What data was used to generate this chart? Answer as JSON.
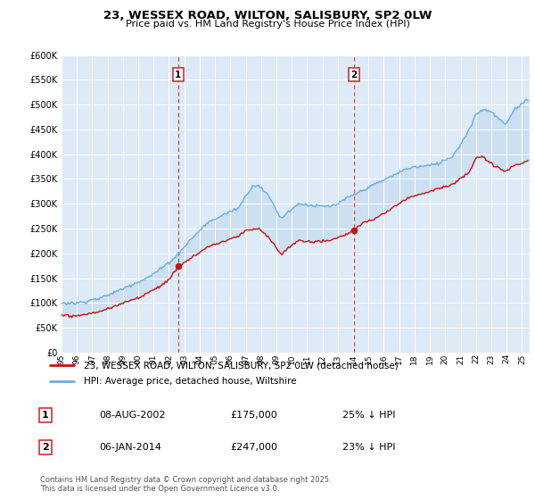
{
  "title": "23, WESSEX ROAD, WILTON, SALISBURY, SP2 0LW",
  "subtitle": "Price paid vs. HM Land Registry's House Price Index (HPI)",
  "legend_line1": "23, WESSEX ROAD, WILTON, SALISBURY, SP2 0LW (detached house)",
  "legend_line2": "HPI: Average price, detached house, Wiltshire",
  "footnote1": "Contains HM Land Registry data © Crown copyright and database right 2025.",
  "footnote2": "This data is licensed under the Open Government Licence v3.0.",
  "event1_label": "1",
  "event1_date": "08-AUG-2002",
  "event1_price": "£175,000",
  "event1_hpi": "25% ↓ HPI",
  "event2_label": "2",
  "event2_date": "06-JAN-2014",
  "event2_price": "£247,000",
  "event2_hpi": "23% ↓ HPI",
  "hpi_color": "#6aaee0",
  "price_color": "#cc1111",
  "dashed_color": "#cc3333",
  "fill_color": "#c5dcf0",
  "plot_bg": "#ddeaf7",
  "ylim": [
    0,
    600000
  ],
  "yticks": [
    0,
    50000,
    100000,
    150000,
    200000,
    250000,
    300000,
    350000,
    400000,
    450000,
    500000,
    550000,
    600000
  ],
  "event1_x": 2002.6,
  "event2_x": 2014.04,
  "event1_y": 175000,
  "event2_y": 247000,
  "xmin": 1995,
  "xmax": 2025.5
}
